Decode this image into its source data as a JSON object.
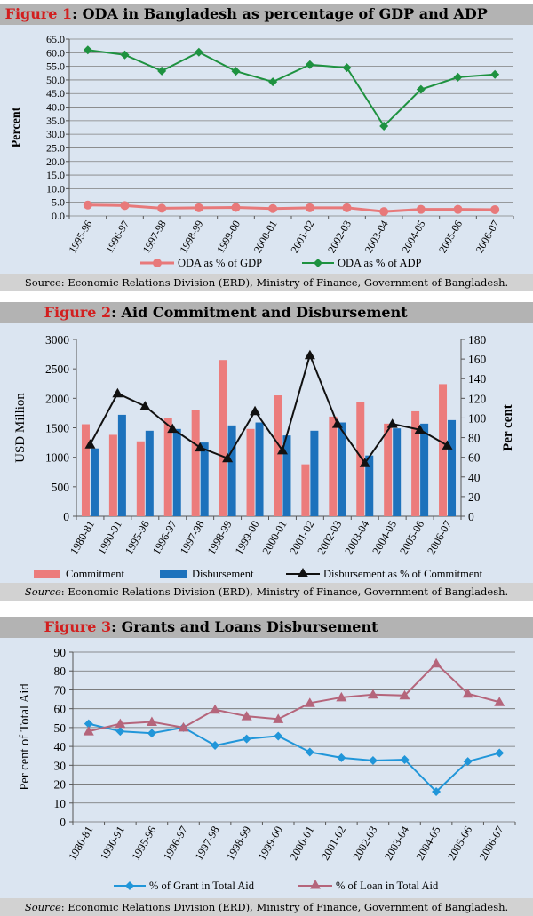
{
  "figures": [
    {
      "fig_label": "Figure 1",
      "title_rest": ": ODA in Bangladesh as percentage of GDP and ADP",
      "source_prefix": "",
      "source_text": "Source: Economic Relations Division (ERD), Ministry of Finance, Government of Bangladesh."
    },
    {
      "fig_label": "Figure 2",
      "title_rest": ": Aid Commitment and Disbursement",
      "source_prefix": "Source",
      "source_text": ": Economic Relations Division (ERD), Ministry of Finance, Government of Bangladesh."
    },
    {
      "fig_label": "Figure 3",
      "title_rest": ": Grants and Loans Disbursement",
      "source_prefix": "Source",
      "source_text": ": Economic Relations Division (ERD), Ministry of Finance, Government of Bangladesh."
    }
  ],
  "colors": {
    "title_red": "#d21f1f",
    "gdp": "#e8797a",
    "adp": "#1e9240",
    "commitment": "#ec7c7c",
    "disbursement": "#1d72bc",
    "ratio": "#111111",
    "grant": "#2196d9",
    "loan": "#b5657b"
  },
  "chart_data": [
    {
      "type": "line",
      "title": "ODA in Bangladesh as percentage of GDP and ADP",
      "ylabel": "Percent",
      "xlabel": "",
      "ylim": [
        0,
        65
      ],
      "yticks": [
        "0.0",
        "5.0",
        "10.0",
        "15.0",
        "20.0",
        "25.0",
        "30.0",
        "35.0",
        "40.0",
        "45.0",
        "50.0",
        "55.0",
        "60.0",
        "65.0"
      ],
      "categories": [
        "1995-96",
        "1996-97",
        "1997-98",
        "1998-99",
        "1999-00",
        "2000-01",
        "2001-02",
        "2002-03",
        "2003-04",
        "2004-05",
        "2005-06",
        "2006-07"
      ],
      "series": [
        {
          "name": "ODA as % of GDP",
          "marker": "circle",
          "values": [
            4.0,
            3.8,
            2.8,
            3.0,
            3.1,
            2.7,
            3.0,
            3.0,
            1.6,
            2.4,
            2.4,
            2.3
          ]
        },
        {
          "name": "ODA as % of ADP",
          "marker": "diamond",
          "values": [
            61.0,
            59.2,
            53.3,
            60.2,
            53.2,
            49.3,
            55.6,
            54.5,
            33.0,
            46.5,
            51.0,
            52.0
          ]
        }
      ],
      "legend": "bottom"
    },
    {
      "type": "bar",
      "title": "Aid Commitment and Disbursement",
      "ylabel": "USD Million",
      "y2label": "Per cent",
      "ylim": [
        0,
        3000
      ],
      "y2lim": [
        0,
        180
      ],
      "yticks": [
        "0",
        "500",
        "1000",
        "1500",
        "2000",
        "2500",
        "3000"
      ],
      "y2ticks": [
        "0",
        "20",
        "40",
        "60",
        "80",
        "100",
        "120",
        "140",
        "160",
        "180"
      ],
      "categories": [
        "1980-81",
        "1990-91",
        "1995-96",
        "1996-97",
        "1997-98",
        "1998-99",
        "1999-00",
        "2000-01",
        "2001-02",
        "2002-03",
        "2003-04",
        "2004-05",
        "2005-06",
        "2006-07"
      ],
      "series": [
        {
          "name": "Commitment",
          "kind": "bar",
          "values": [
            1560,
            1380,
            1270,
            1670,
            1800,
            2650,
            1480,
            2050,
            880,
            1690,
            1930,
            1570,
            1780,
            2240
          ]
        },
        {
          "name": "Disbursement",
          "kind": "bar",
          "values": [
            1150,
            1720,
            1450,
            1480,
            1250,
            1540,
            1590,
            1370,
            1450,
            1590,
            1030,
            1490,
            1570,
            1630
          ]
        },
        {
          "name": "Disbursement as % of Commitment",
          "kind": "line",
          "axis": "right",
          "values": [
            73,
            125,
            112,
            89,
            70,
            59,
            107,
            67,
            164,
            94,
            54,
            94,
            88,
            72
          ]
        }
      ],
      "legend": "bottom"
    },
    {
      "type": "line",
      "title": "Grants and Loans Disbursement",
      "ylabel": "Per cent of Total Aid",
      "ylim": [
        0,
        90
      ],
      "yticks": [
        "0",
        "10",
        "20",
        "30",
        "40",
        "50",
        "60",
        "70",
        "80",
        "90"
      ],
      "categories": [
        "1980-81",
        "1990-91",
        "1995-96",
        "1996-97",
        "1997-98",
        "1998-99",
        "1999-00",
        "2000-01",
        "2001-02",
        "2002-03",
        "2003-04",
        "2004-05",
        "2005-06",
        "2006-07"
      ],
      "series": [
        {
          "name": "% of Grant in Total Aid",
          "marker": "diamond",
          "values": [
            52,
            48,
            47,
            50,
            40.5,
            44,
            45.5,
            37,
            34,
            32.5,
            33,
            16,
            32,
            36.5
          ]
        },
        {
          "name": "% of Loan in Total Aid",
          "marker": "triangle",
          "values": [
            48,
            52,
            53,
            50,
            59.5,
            56,
            54.5,
            63,
            66,
            67.5,
            67,
            84,
            68,
            63.5
          ]
        }
      ],
      "legend": "bottom"
    }
  ]
}
